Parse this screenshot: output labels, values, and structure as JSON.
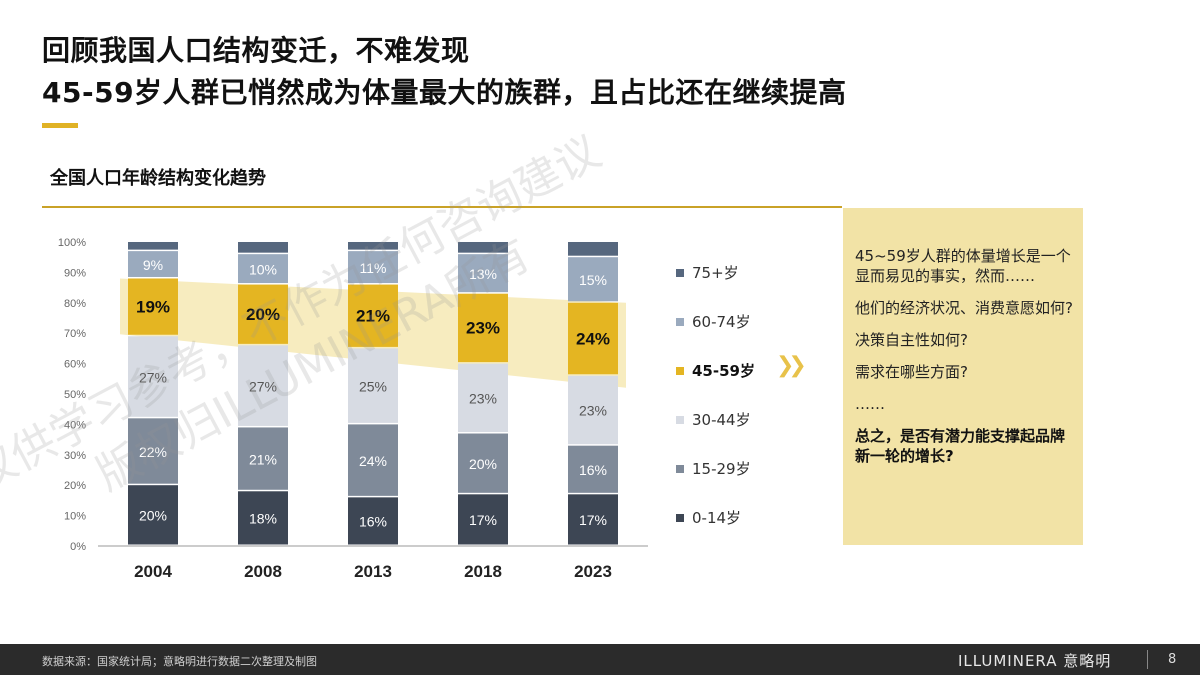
{
  "title": {
    "line1": "回顾我国人口结构变迁，不难发现",
    "line2": "45-59岁人群已悄然成为体量最大的族群，且占比还在继续提高"
  },
  "chart_data": {
    "type": "bar",
    "stacked": true,
    "title": "全国人口年龄结构变化趋势",
    "categories": [
      "2004",
      "2008",
      "2013",
      "2018",
      "2023"
    ],
    "y_ticks": [
      "0%",
      "10%",
      "20%",
      "30%",
      "40%",
      "50%",
      "60%",
      "70%",
      "80%",
      "90%",
      "100%"
    ],
    "ylim": [
      0,
      100
    ],
    "series": [
      {
        "name": "0-14岁",
        "color": "#3d4654",
        "values": [
          20,
          18,
          16,
          17,
          17
        ],
        "labels": [
          "20%",
          "18%",
          "16%",
          "17%",
          "17%"
        ]
      },
      {
        "name": "15-29岁",
        "color": "#7f8a99",
        "values": [
          22,
          21,
          24,
          20,
          16
        ],
        "labels": [
          "22%",
          "21%",
          "24%",
          "20%",
          "16%"
        ]
      },
      {
        "name": "30-44岁",
        "color": "#d7dbe3",
        "values": [
          27,
          27,
          25,
          23,
          23
        ],
        "labels": [
          "27%",
          "27%",
          "25%",
          "23%",
          "23%"
        ]
      },
      {
        "name": "45-59岁",
        "color": "#e4b522",
        "values": [
          19,
          20,
          21,
          23,
          24
        ],
        "labels": [
          "19%",
          "20%",
          "21%",
          "23%",
          "24%"
        ]
      },
      {
        "name": "60-74岁",
        "color": "#9aaabe",
        "values": [
          9,
          10,
          11,
          13,
          15
        ],
        "labels": [
          "9%",
          "10%",
          "11%",
          "13%",
          "15%"
        ]
      },
      {
        "name": "75+岁",
        "color": "#56677e",
        "values": [
          3,
          4,
          3,
          4,
          5
        ],
        "labels": [
          "",
          "",
          "",
          "",
          ""
        ]
      }
    ],
    "legend": "right",
    "highlight_series": "45-59岁",
    "grid": false
  },
  "panel": {
    "lines": [
      "45~59岁人群的体量增长是一个显而易见的事实，然而……",
      "他们的经济状况、消费意愿如何?",
      "决策自主性如何?",
      "需求在哪些方面?",
      "……"
    ],
    "conclusion": "总之，是否有潜力能支撑起品牌新一轮的增长?"
  },
  "footer": {
    "source": "数据来源：国家统计局；意略明进行数据二次整理及制图",
    "logo": "ILLUMINERA 意略明",
    "page": "8"
  },
  "watermark": {
    "line1": "仅供学习参考，不作为任何咨询建议",
    "line2": "版权归ILLUMINERA所有"
  },
  "colors": {
    "accent": "#e4b522",
    "panel": "#f2e3a6",
    "footer": "#2b2b2b"
  }
}
